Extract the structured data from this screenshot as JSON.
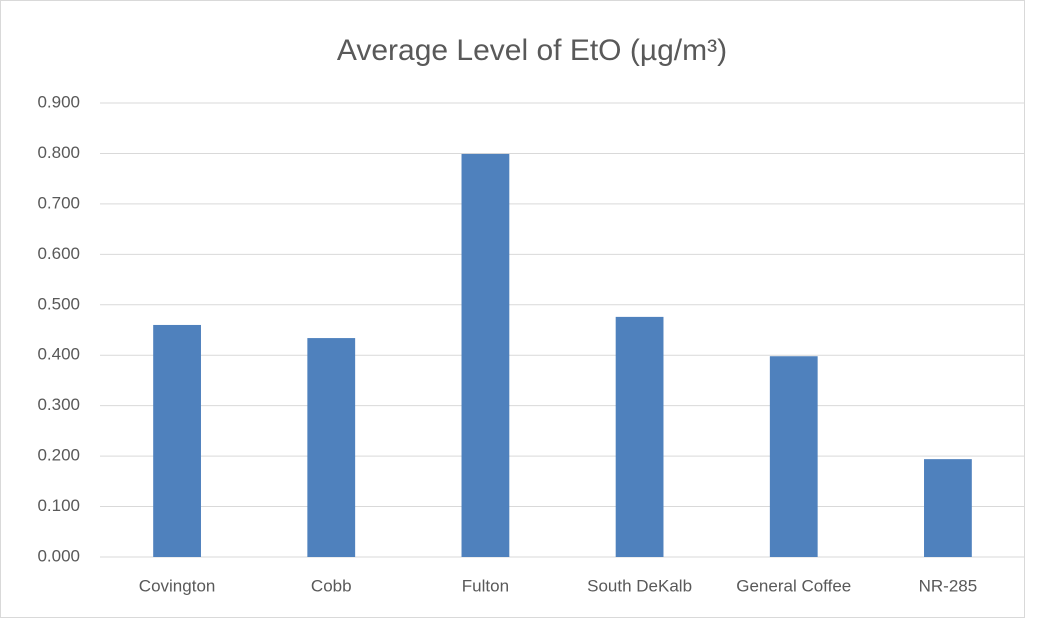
{
  "chart_data": {
    "type": "bar",
    "title": "Average Level of EtO (µg/m³)",
    "categories": [
      "Covington",
      "Cobb",
      "Fulton",
      "South DeKalb",
      "General Coffee",
      "NR-285"
    ],
    "values": [
      0.46,
      0.434,
      0.799,
      0.476,
      0.398,
      0.194
    ],
    "color": "#4f81bd",
    "ylim": [
      0,
      0.9
    ],
    "yticks": [
      {
        "value": 0,
        "label": "0.000"
      },
      {
        "value": 0.1,
        "label": "0.100"
      },
      {
        "value": 0.2,
        "label": "0.200"
      },
      {
        "value": 0.3,
        "label": "0.300"
      },
      {
        "value": 0.4,
        "label": "0.400"
      },
      {
        "value": 0.5,
        "label": "0.500"
      },
      {
        "value": 0.6,
        "label": "0.600"
      },
      {
        "value": 0.7,
        "label": "0.700"
      },
      {
        "value": 0.8,
        "label": "0.800"
      },
      {
        "value": 0.9,
        "label": "0.900"
      }
    ],
    "grid": true
  }
}
